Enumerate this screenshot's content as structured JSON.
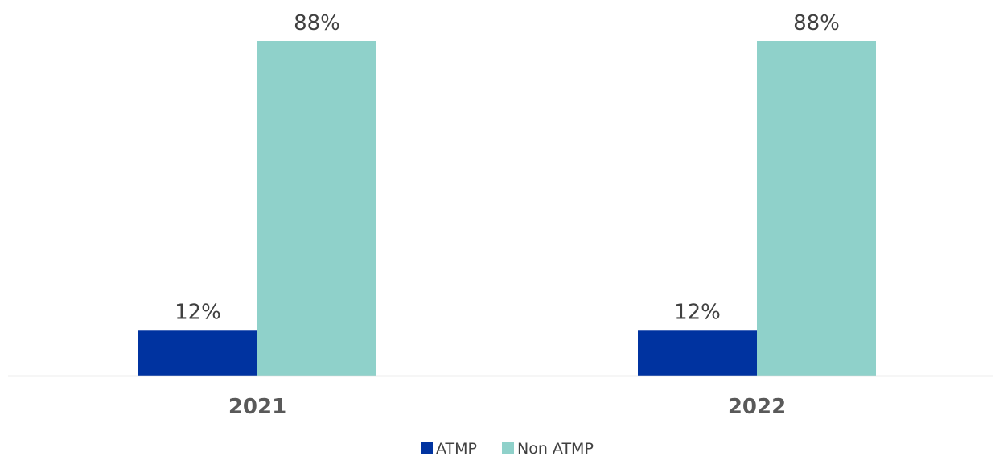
{
  "chart_data": {
    "type": "bar",
    "categories": [
      "2021",
      "2022"
    ],
    "series": [
      {
        "name": "ATMP",
        "values": [
          12,
          12
        ],
        "labels": [
          "12%",
          "12%"
        ],
        "color": "#0033A0"
      },
      {
        "name": "Non ATMP",
        "values": [
          88,
          88
        ],
        "labels": [
          "88%",
          "88%"
        ],
        "color": "#8FD1CA"
      }
    ],
    "ylim": [
      0,
      88
    ],
    "grid": false,
    "legend_position": "bottom-center",
    "axis_color": "#D9D9D9"
  }
}
